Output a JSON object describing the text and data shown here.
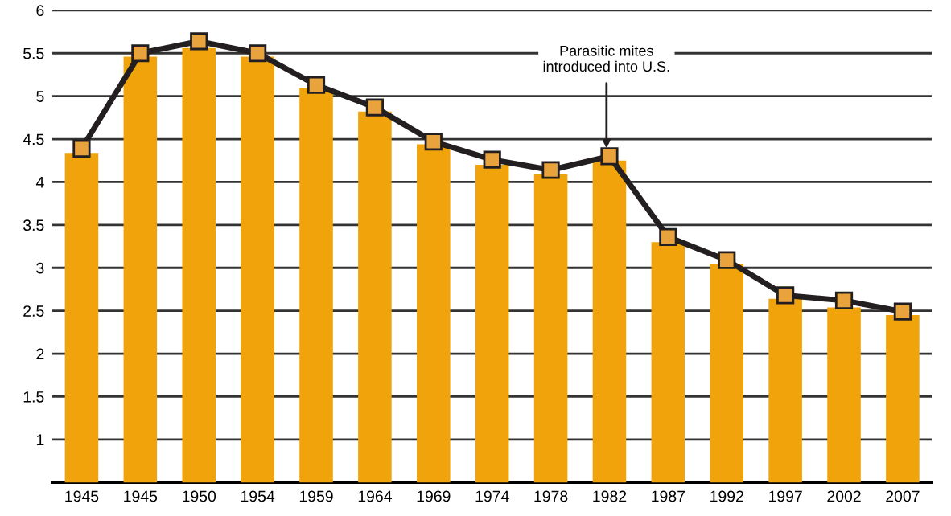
{
  "chart_data": {
    "type": "bar",
    "categories": [
      "1945",
      "1945",
      "1950",
      "1954",
      "1959",
      "1964",
      "1969",
      "1974",
      "1978",
      "1982",
      "1987",
      "1992",
      "1997",
      "2002",
      "2007"
    ],
    "series": [
      {
        "color": "#f0a30a",
        "values": [
          4.34,
          5.46,
          5.56,
          5.46,
          5.09,
          4.82,
          4.44,
          4.2,
          4.09,
          4.25,
          3.3,
          3.05,
          2.64,
          2.54,
          2.45
        ]
      },
      {
        "type": "line",
        "color": "#231f20",
        "marker": "square",
        "line_style": "solid",
        "values": [
          4.39,
          5.5,
          5.64,
          5.5,
          5.13,
          4.87,
          4.47,
          4.26,
          4.14,
          4.3,
          3.36,
          3.09,
          2.68,
          2.62,
          2.49
        ]
      }
    ],
    "ylim": [
      0.5,
      6
    ],
    "yticks": [
      1,
      1.5,
      2,
      2.5,
      3,
      3.5,
      4,
      4.5,
      5,
      5.5,
      6
    ],
    "grid": "y",
    "annotations": [
      {
        "text": "Parasitic mites\nintroduced into U.S.",
        "y": 4.34
      }
    ]
  }
}
